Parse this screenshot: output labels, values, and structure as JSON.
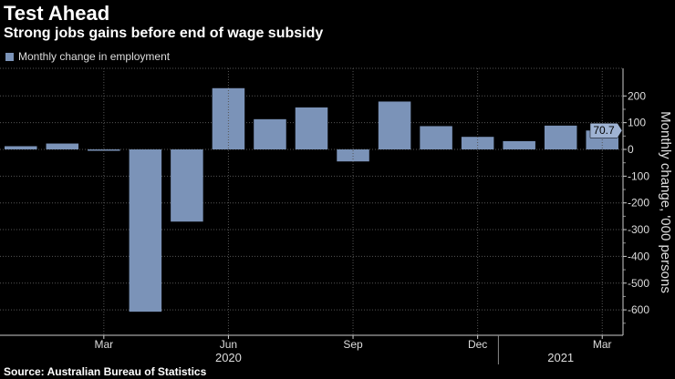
{
  "title": "Test Ahead",
  "subtitle": "Strong jobs gains before end of wage subsidy",
  "source": "Source: Australian Bureau of Statistics",
  "chart_data": {
    "type": "bar",
    "legend": "Monthly change in employment",
    "ylabel": "Monthly change, '000 persons",
    "categories": [
      "Jan 2020",
      "Feb 2020",
      "Mar 2020",
      "Apr 2020",
      "May 2020",
      "Jun 2020",
      "Jul 2020",
      "Aug 2020",
      "Sep 2020",
      "Oct 2020",
      "Nov 2020",
      "Dec 2020",
      "Jan 2021",
      "Feb 2021",
      "Mar 2021"
    ],
    "values": [
      12,
      22,
      -3,
      -607,
      -270,
      229,
      113,
      157,
      -45,
      179,
      87,
      47,
      31,
      89,
      70.7
    ],
    "ylim": [
      -650,
      300
    ],
    "yticks": [
      200,
      100,
      0,
      -100,
      -200,
      -300,
      -400,
      -500,
      -600
    ],
    "ytick_labels": [
      "200",
      "100",
      "0",
      "-100",
      "-200",
      "-300",
      "-400",
      "-500",
      "-600"
    ],
    "xtick_labels": [
      {
        "label": "Mar",
        "index": 2
      },
      {
        "label": "Jun",
        "index": 5
      },
      {
        "label": "Sep",
        "index": 8
      },
      {
        "label": "Dec",
        "index": 11
      },
      {
        "label": "Mar",
        "index": 14
      }
    ],
    "year_labels": [
      {
        "label": "2020",
        "index": 5
      },
      {
        "label": "2021",
        "index": 13
      }
    ],
    "last_value_label": "70.7",
    "bar_color": "#7b93b8"
  }
}
